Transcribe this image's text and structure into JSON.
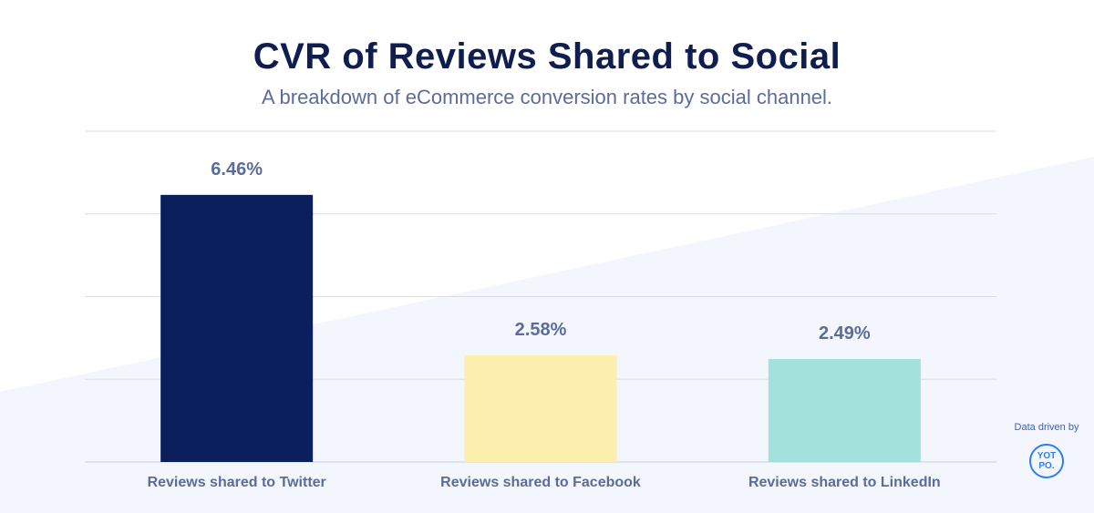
{
  "header": {
    "title": "CVR of Reviews Shared to Social",
    "subtitle": "A breakdown of eCommerce conversion rates by social channel."
  },
  "badge": {
    "text": "Data driven by",
    "logo_text": "YOT PO."
  },
  "chart_data": {
    "type": "bar",
    "title": "CVR of Reviews Shared to Social",
    "subtitle": "A breakdown of eCommerce conversion rates by social channel.",
    "categories": [
      "Reviews shared to Twitter",
      "Reviews shared to Facebook",
      "Reviews shared to LinkedIn"
    ],
    "values": [
      6.46,
      2.58,
      2.49
    ],
    "data_labels": [
      "6.46%",
      "2.58%",
      "2.49%"
    ],
    "colors": [
      "#0a1f5c",
      "#fdefae",
      "#a3e1dd"
    ],
    "ylim": [
      0,
      8
    ],
    "grid": true,
    "xlabel": "",
    "ylabel": ""
  },
  "colors": {
    "title": "#0f1e4e",
    "subtitle": "#5b6b9c",
    "label": "#5b6b9c",
    "grid": "#d9dce6",
    "background_wedge": "#f3f6fc"
  }
}
